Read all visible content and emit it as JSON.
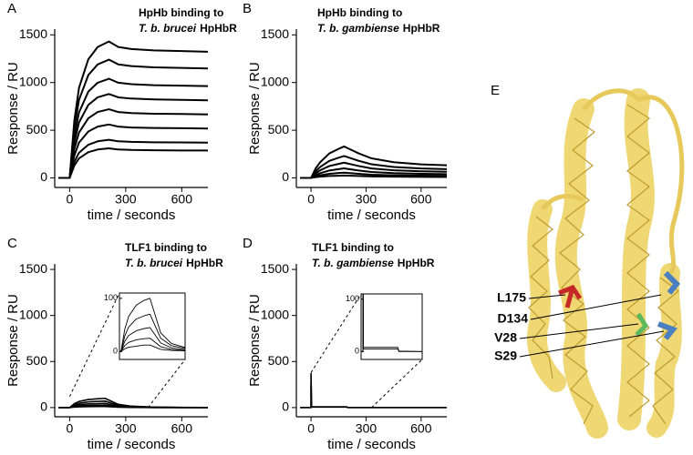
{
  "chart_data": [
    {
      "type": "line",
      "panel_label": "A",
      "title": {
        "line1": "HpHb binding to",
        "species": "T. b. brucei",
        "receptor": "HpHbR"
      },
      "x_label": "time / seconds",
      "y_label": "Response / RU",
      "color": "#000000",
      "x": [
        -60,
        0,
        25,
        50,
        100,
        150,
        210,
        260,
        330,
        450,
        600,
        740
      ],
      "xlim": [
        -80,
        740
      ],
      "ylim": [
        -100,
        1560
      ],
      "xticks": [
        0,
        300,
        600
      ],
      "yticks": [
        0,
        500,
        1000,
        1500
      ],
      "series": [
        {
          "values": [
            0,
            0,
            600,
            944,
            1244,
            1373,
            1430,
            1373,
            1351,
            1337,
            1330,
            1323
          ]
        },
        {
          "values": [
            0,
            0,
            521,
            818,
            1079,
            1190,
            1240,
            1190,
            1172,
            1159,
            1153,
            1147
          ]
        },
        {
          "values": [
            0,
            0,
            437,
            686,
            905,
            998,
            1040,
            998,
            983,
            972,
            967,
            962
          ]
        },
        {
          "values": [
            0,
            0,
            370,
            581,
            766,
            845,
            880,
            845,
            832,
            823,
            818,
            814
          ]
        },
        {
          "values": [
            0,
            0,
            302,
            475,
            626,
            691,
            720,
            691,
            680,
            673,
            670,
            666
          ]
        },
        {
          "values": [
            0,
            0,
            235,
            370,
            487,
            538,
            560,
            538,
            529,
            524,
            521,
            518
          ]
        },
        {
          "values": [
            0,
            0,
            168,
            264,
            348,
            384,
            400,
            384,
            378,
            374,
            372,
            370
          ]
        },
        {
          "values": [
            0,
            0,
            130,
            205,
            270,
            298,
            310,
            298,
            293,
            290,
            288,
            287
          ]
        }
      ]
    },
    {
      "type": "line",
      "panel_label": "B",
      "title": {
        "line1": "HpHb binding to",
        "species": "T. b. gambiense",
        "receptor": "HpHbR"
      },
      "x_label": "time / seconds",
      "y_label": "Response / RU",
      "color": "#000000",
      "x": [
        -60,
        0,
        25,
        50,
        100,
        150,
        180,
        260,
        330,
        450,
        600,
        740
      ],
      "xlim": [
        -80,
        740
      ],
      "ylim": [
        -100,
        1560
      ],
      "xticks": [
        0,
        300,
        600
      ],
      "yticks": [
        0,
        500,
        1000,
        1500
      ],
      "series": [
        {
          "values": [
            0,
            0,
            99,
            165,
            257,
            304,
            330,
            257,
            205,
            165,
            142,
            132
          ]
        },
        {
          "values": [
            0,
            0,
            69,
            115,
            179,
            212,
            230,
            179,
            143,
            115,
            99,
            92
          ]
        },
        {
          "values": [
            0,
            0,
            48,
            80,
            125,
            147,
            160,
            125,
            99,
            80,
            69,
            64
          ]
        },
        {
          "values": [
            0,
            0,
            30,
            50,
            78,
            92,
            100,
            78,
            62,
            50,
            43,
            40
          ]
        },
        {
          "values": [
            0,
            0,
            17,
            28,
            43,
            51,
            55,
            43,
            34,
            28,
            24,
            22
          ]
        },
        {
          "values": [
            0,
            0,
            8,
            13,
            20,
            23,
            25,
            20,
            16,
            13,
            11,
            10
          ]
        }
      ]
    },
    {
      "type": "line",
      "panel_label": "C",
      "title": {
        "line1": "TLF1 binding to",
        "species": "T. b. brucei",
        "receptor": "HpHbR"
      },
      "x_label": "time / seconds",
      "y_label": "Response / RU",
      "color": "#000000",
      "x": [
        -60,
        0,
        25,
        50,
        100,
        150,
        190,
        260,
        330,
        450,
        600,
        740
      ],
      "xlim": [
        -80,
        740
      ],
      "ylim": [
        -100,
        1560
      ],
      "xticks": [
        0,
        300,
        600
      ],
      "yticks": [
        0,
        500,
        1000,
        1500
      ],
      "inset": {
        "xlim": [
          -10,
          420
        ],
        "ylim": [
          -15,
          110
        ],
        "yticks": [
          0,
          100
        ]
      },
      "series": [
        {
          "values": [
            0,
            0,
            42,
            66,
            87,
            96,
            100,
            35,
            15,
            5,
            2,
            1
          ]
        },
        {
          "values": [
            0,
            0,
            29,
            46,
            61,
            67,
            70,
            25,
            11,
            4,
            1,
            1
          ]
        },
        {
          "values": [
            0,
            0,
            19,
            30,
            39,
            43,
            45,
            16,
            7,
            2,
            1,
            0
          ]
        },
        {
          "values": [
            0,
            0,
            11,
            17,
            22,
            24,
            25,
            9,
            4,
            1,
            1,
            0
          ]
        },
        {
          "values": [
            0,
            0,
            5,
            8,
            10,
            12,
            12,
            4,
            2,
            1,
            0,
            0
          ]
        }
      ]
    },
    {
      "type": "line",
      "panel_label": "D",
      "title": {
        "line1": "TLF1 binding to",
        "species": "T. b. gambiense",
        "receptor": "HpHbR"
      },
      "x_label": "time / seconds",
      "y_label": "Response / RU",
      "color": "#000000",
      "x": [
        -60,
        0,
        0,
        3,
        25,
        100,
        195,
        200,
        330,
        740
      ],
      "xlim": [
        -80,
        740
      ],
      "ylim": [
        -100,
        1560
      ],
      "xticks": [
        0,
        300,
        600
      ],
      "yticks": [
        0,
        500,
        1000,
        1500
      ],
      "inset": {
        "xlim": [
          -10,
          330
        ],
        "ylim": [
          -15,
          110
        ],
        "yticks": [
          0,
          100
        ]
      },
      "series": [
        {
          "values": [
            0,
            0,
            370,
            8,
            8,
            8,
            8,
            1,
            0,
            0
          ]
        },
        {
          "values": [
            0,
            0,
            250,
            5,
            5,
            5,
            5,
            0,
            0,
            0
          ]
        }
      ]
    }
  ],
  "structure": {
    "panel_label": "E",
    "residues": [
      "L175",
      "D134",
      "V28",
      "S29"
    ]
  }
}
